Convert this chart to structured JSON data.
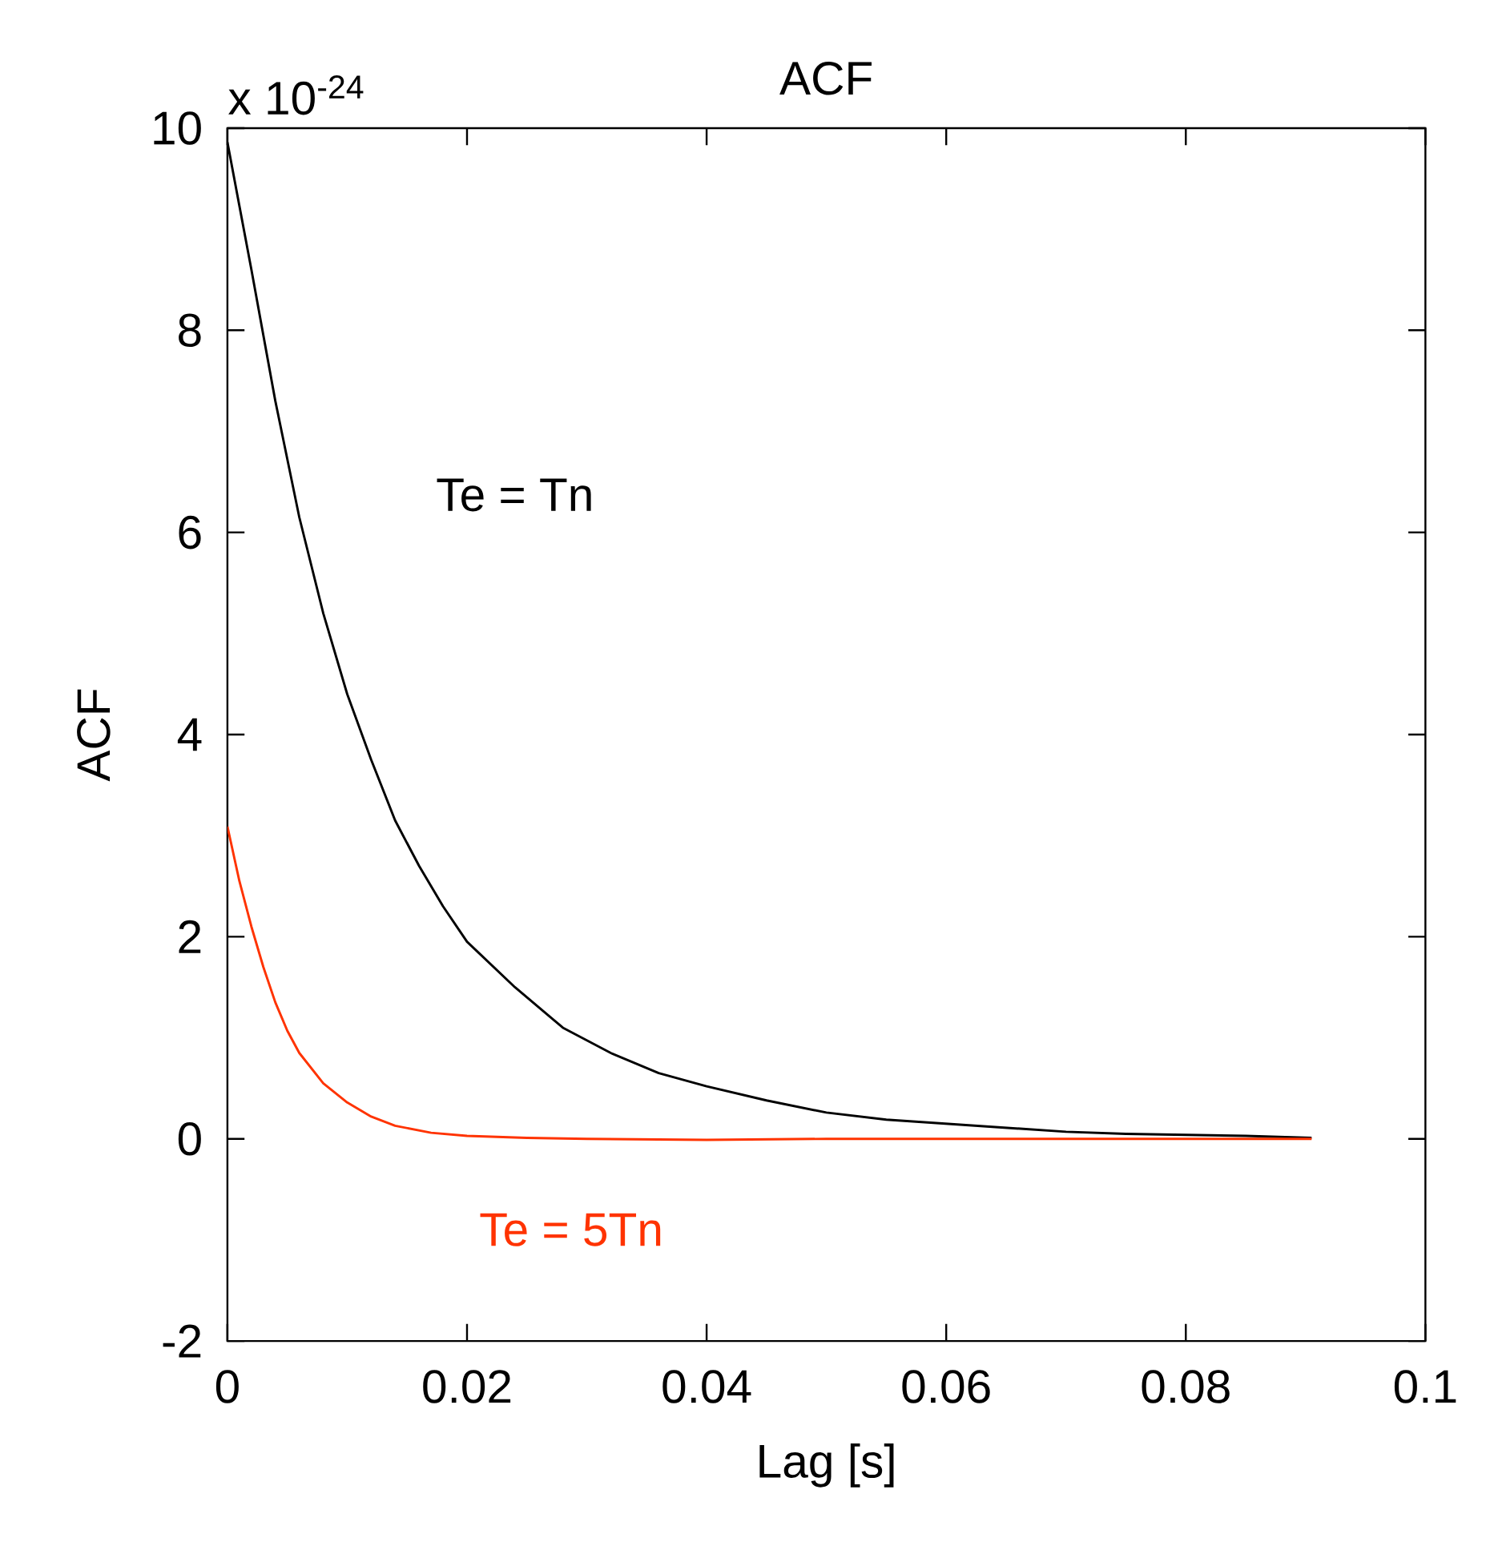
{
  "chart_data": {
    "type": "line",
    "title": "ACF",
    "xlabel": "Lag [s]",
    "ylabel": "ACF",
    "annotations": [
      "x 10$^{-24}$"
    ],
    "xlim": [
      0,
      0.1
    ],
    "ylim": [
      -2,
      10
    ],
    "xticks": [
      0,
      0.02,
      0.04,
      0.06,
      0.08,
      0.1
    ],
    "yticks": [
      -2,
      0,
      2,
      4,
      6,
      8,
      10
    ],
    "grid": false,
    "legend": false,
    "marker": "none",
    "line_style": "solid",
    "series": [
      {
        "name": "Te = Tn",
        "color": "#000000",
        "x": [
          0,
          0.002,
          0.004,
          0.006,
          0.008,
          0.01,
          0.012,
          0.014,
          0.016,
          0.018,
          0.02,
          0.024,
          0.028,
          0.032,
          0.036,
          0.04,
          0.045,
          0.05,
          0.055,
          0.06,
          0.065,
          0.07,
          0.075,
          0.08,
          0.085,
          0.0905
        ],
        "values": [
          9.86,
          8.6,
          7.3,
          6.15,
          5.2,
          4.4,
          3.75,
          3.15,
          2.7,
          2.3,
          1.95,
          1.5,
          1.1,
          0.85,
          0.65,
          0.52,
          0.38,
          0.26,
          0.19,
          0.15,
          0.11,
          0.07,
          0.05,
          0.04,
          0.03,
          0.01
        ]
      },
      {
        "name": "Te = 5Tn",
        "color": "#ff3300",
        "x": [
          0,
          0.001,
          0.002,
          0.003,
          0.004,
          0.005,
          0.006,
          0.008,
          0.01,
          0.012,
          0.014,
          0.017,
          0.02,
          0.025,
          0.03,
          0.04,
          0.05,
          0.06,
          0.07,
          0.08,
          0.0905
        ],
        "values": [
          3.09,
          2.55,
          2.1,
          1.7,
          1.35,
          1.07,
          0.85,
          0.55,
          0.36,
          0.22,
          0.13,
          0.06,
          0.03,
          0.01,
          0,
          -0.01,
          0,
          0,
          0,
          0,
          0
        ]
      }
    ]
  }
}
